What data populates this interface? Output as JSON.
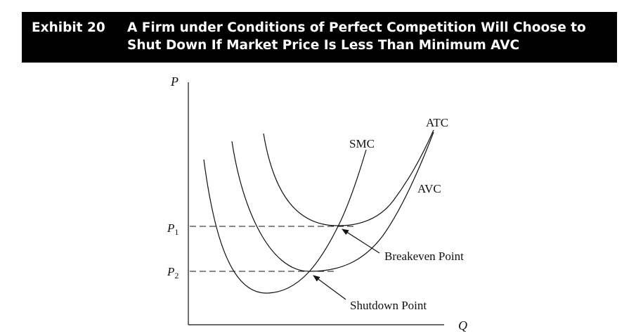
{
  "exhibit": {
    "label": "Exhibit 20",
    "title_line1": "A Firm under Conditions of Perfect Competition Will Choose to",
    "title_line2": "Shut Down If Market Price Is Less Than Minimum AVC"
  },
  "diagram": {
    "y_axis_label": "P",
    "x_axis_label": "Q",
    "price_levels": [
      {
        "label": "P",
        "subscript": "1"
      },
      {
        "label": "P",
        "subscript": "2"
      }
    ],
    "curves": {
      "smc": "SMC",
      "atc": "ATC",
      "avc": "AVC"
    },
    "annotations": {
      "breakeven": "Breakeven Point",
      "shutdown": "Shutdown Point"
    }
  }
}
